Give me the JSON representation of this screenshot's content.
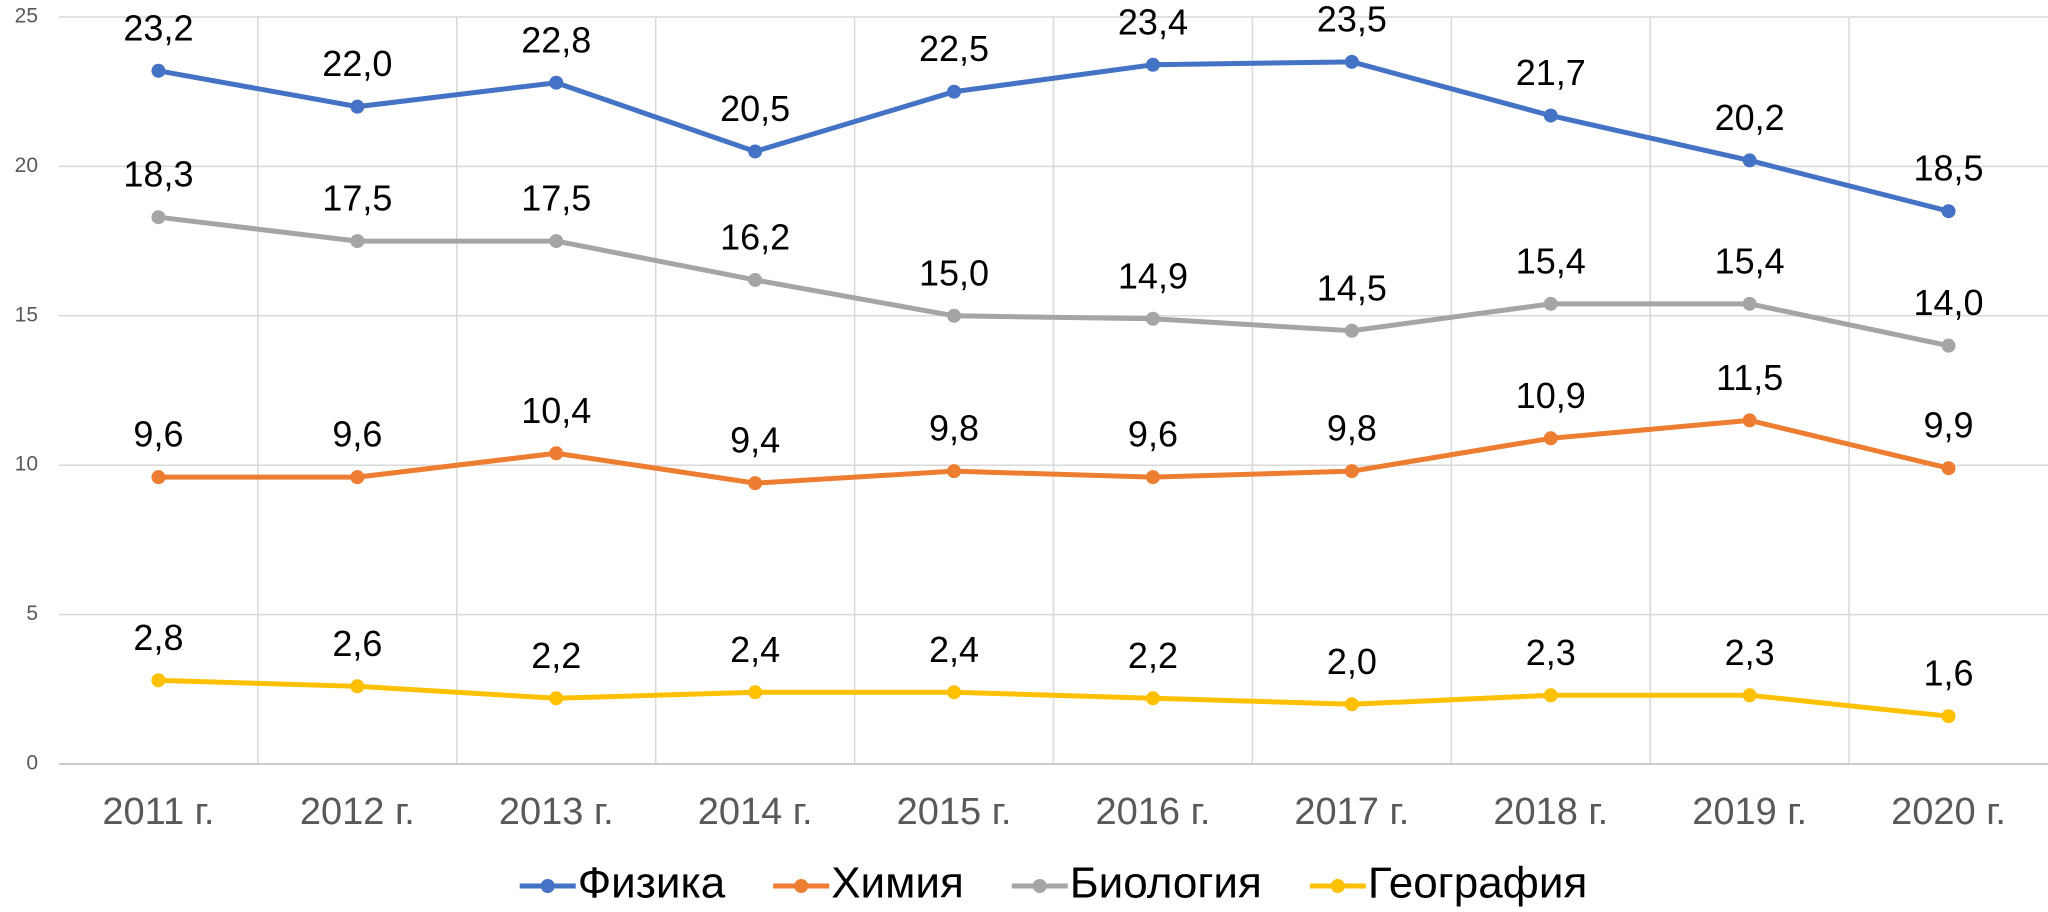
{
  "chart_data": {
    "type": "line",
    "categories": [
      "2011 г.",
      "2012 г.",
      "2013 г.",
      "2014 г.",
      "2015 г.",
      "2016 г.",
      "2017 г.",
      "2018 г.",
      "2019 г.",
      "2020 г."
    ],
    "series": [
      {
        "name": "Физика",
        "color": "#4472c4",
        "values": [
          23.2,
          22.0,
          22.8,
          20.5,
          22.5,
          23.4,
          23.5,
          21.7,
          20.2,
          18.5
        ],
        "value_labels": [
          "23,2",
          "22,0",
          "22,8",
          "20,5",
          "22,5",
          "23,4",
          "23,5",
          "21,7",
          "20,2",
          "18,5"
        ]
      },
      {
        "name": "Химия",
        "color": "#ed7d31",
        "values": [
          9.6,
          9.6,
          10.4,
          9.4,
          9.8,
          9.6,
          9.8,
          10.9,
          11.5,
          9.9
        ],
        "value_labels": [
          "9,6",
          "9,6",
          "10,4",
          "9,4",
          "9,8",
          "9,6",
          "9,8",
          "10,9",
          "11,5",
          "9,9"
        ]
      },
      {
        "name": "Биология",
        "color": "#a5a5a5",
        "values": [
          18.3,
          17.5,
          17.5,
          16.2,
          15.0,
          14.9,
          14.5,
          15.4,
          15.4,
          14.0
        ],
        "value_labels": [
          "18,3",
          "17,5",
          "17,5",
          "16,2",
          "15,0",
          "14,9",
          "14,5",
          "15,4",
          "15,4",
          "14,0"
        ]
      },
      {
        "name": "География",
        "color": "#ffc000",
        "values": [
          2.8,
          2.6,
          2.2,
          2.4,
          2.4,
          2.2,
          2.0,
          2.3,
          2.3,
          1.6
        ],
        "value_labels": [
          "2,8",
          "2,6",
          "2,2",
          "2,4",
          "2,4",
          "2,2",
          "2,0",
          "2,3",
          "2,3",
          "1,6"
        ]
      }
    ],
    "ylim": [
      0,
      25
    ],
    "yticks": [
      0,
      5,
      10,
      15,
      20,
      25
    ],
    "grid": true,
    "legend": "bottom"
  }
}
